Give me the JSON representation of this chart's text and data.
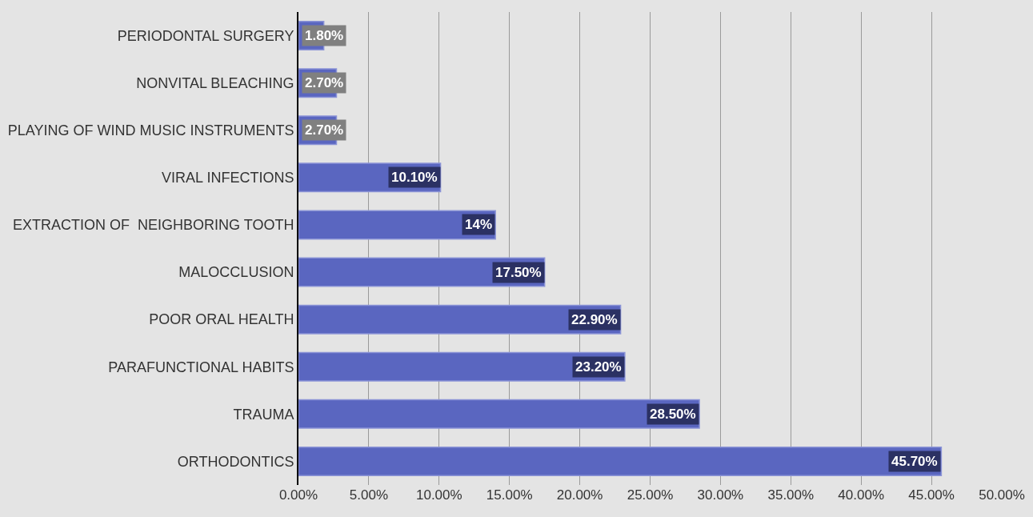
{
  "chart_data": {
    "type": "bar",
    "orientation": "horizontal",
    "categories": [
      "PERIODONTAL SURGERY",
      "NONVITAL BLEACHING",
      "PLAYING OF WIND MUSIC INSTRUMENTS",
      "VIRAL INFECTIONS",
      "EXTRACTION OF  NEIGHBORING TOOTH",
      "MALOCCLUSION",
      "POOR ORAL HEALTH",
      "PARAFUNCTIONAL HABITS",
      "TRAUMA",
      "ORTHODONTICS"
    ],
    "values": [
      1.8,
      2.7,
      2.7,
      10.1,
      14,
      17.5,
      22.9,
      23.2,
      28.5,
      45.7
    ],
    "value_labels": [
      "1.80%",
      "2.70%",
      "2.70%",
      "10.10%",
      "14%",
      "17.50%",
      "22.90%",
      "23.20%",
      "28.50%",
      "45.70%"
    ],
    "color": "#5a66c0",
    "xlim": [
      0,
      50
    ],
    "xticks": [
      {
        "value": 0,
        "label": "0.00%"
      },
      {
        "value": 5,
        "label": "5.00%"
      },
      {
        "value": 10,
        "label": "10.00%"
      },
      {
        "value": 15,
        "label": "15.00%"
      },
      {
        "value": 20,
        "label": "20.00%"
      },
      {
        "value": 25,
        "label": "25.00%"
      },
      {
        "value": 30,
        "label": "30.00%"
      },
      {
        "value": 35,
        "label": "35.00%"
      },
      {
        "value": 40,
        "label": "40.00%"
      },
      {
        "value": 45,
        "label": "45.00%"
      },
      {
        "value": 50,
        "label": "50.00%"
      }
    ],
    "grid": "x"
  }
}
